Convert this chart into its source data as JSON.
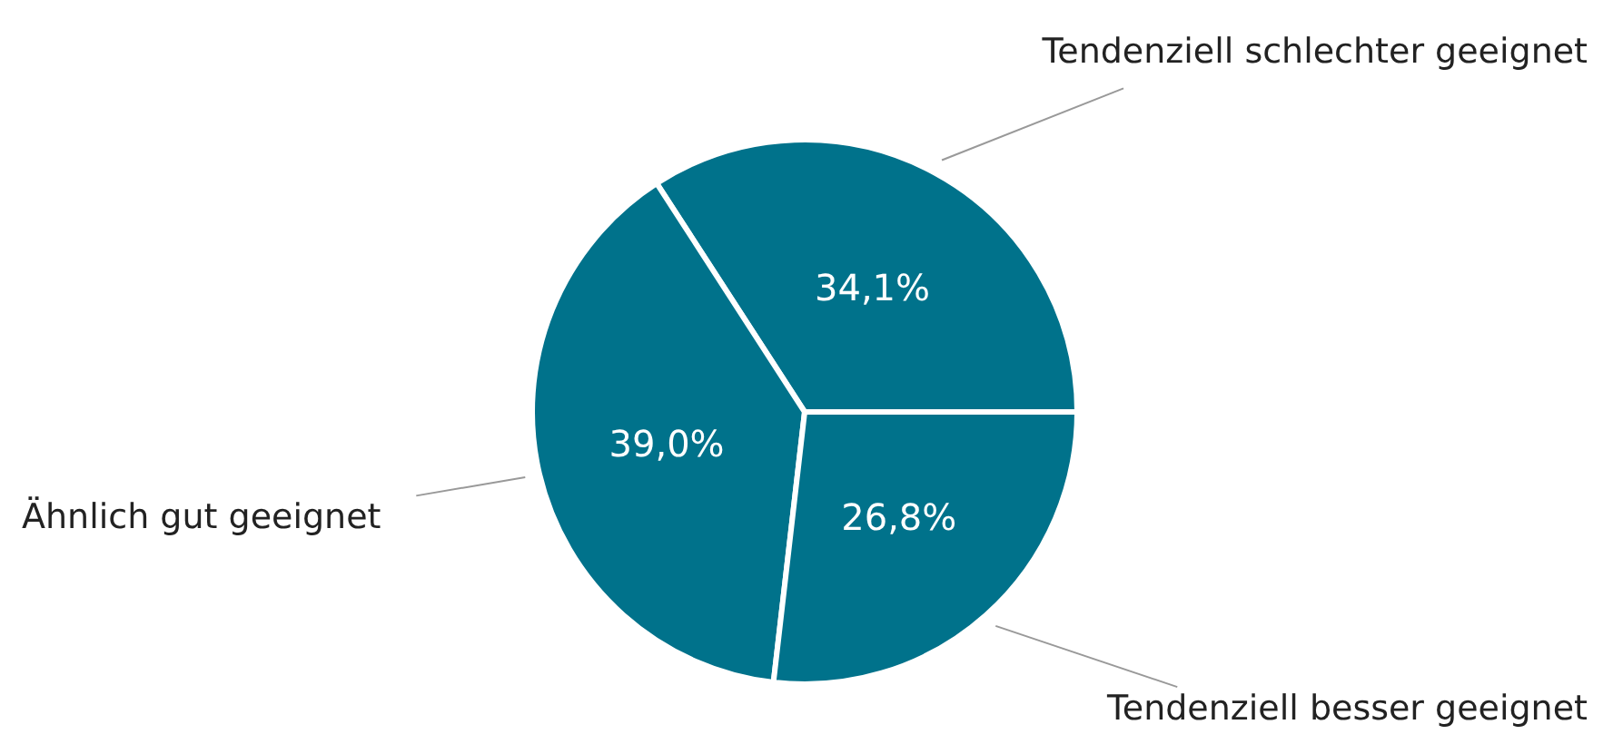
{
  "chart_data": {
    "type": "pie",
    "categories": [
      "Tendenziell schlechter geeignet",
      "Ähnlich gut geeignet",
      "Tendenziell besser geeignet"
    ],
    "values": [
      34.1,
      39.0,
      26.8
    ],
    "colors": [
      "#00728b",
      "#00728b",
      "#00728b"
    ],
    "value_labels": [
      "34,1%",
      "39,0%",
      "26,8%"
    ],
    "legend": false
  }
}
